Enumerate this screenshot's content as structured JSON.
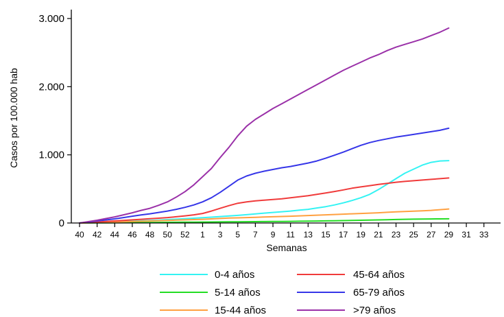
{
  "chart_data": {
    "type": "line",
    "title": "",
    "xlabel": "Semanas",
    "ylabel": "Casos por 100.000 hab",
    "x_ticks": [
      "40",
      "42",
      "44",
      "46",
      "48",
      "50",
      "52",
      "1",
      "3",
      "5",
      "7",
      "9",
      "11",
      "13",
      "15",
      "17",
      "19",
      "21",
      "23",
      "25",
      "27",
      "29",
      "31",
      "33"
    ],
    "y_ticks": [
      0,
      1000,
      2000,
      3000
    ],
    "y_tick_labels": [
      "0",
      "1.000",
      "2.000",
      "3.000"
    ],
    "ylim": [
      0,
      3000
    ],
    "grid": false,
    "legend_position": "bottom",
    "x": [
      "40",
      "41",
      "42",
      "43",
      "44",
      "45",
      "46",
      "47",
      "48",
      "49",
      "50",
      "51",
      "52",
      "53",
      "1",
      "2",
      "3",
      "4",
      "5",
      "6",
      "7",
      "8",
      "9",
      "10",
      "11",
      "12",
      "13",
      "14",
      "15",
      "16",
      "17",
      "18",
      "19",
      "20",
      "21",
      "22",
      "23",
      "24",
      "25",
      "26",
      "27",
      "28",
      "29"
    ],
    "series": [
      {
        "name": "0-4 años",
        "color": "#33f3f3",
        "values": [
          0,
          5,
          10,
          14,
          18,
          23,
          27,
          32,
          37,
          43,
          50,
          56,
          62,
          70,
          78,
          86,
          95,
          104,
          112,
          122,
          133,
          145,
          155,
          165,
          175,
          188,
          200,
          220,
          240,
          265,
          295,
          330,
          370,
          420,
          490,
          570,
          650,
          730,
          790,
          850,
          890,
          910,
          915
        ]
      },
      {
        "name": "5-14 años",
        "color": "#22dd22",
        "values": [
          0,
          1,
          2,
          3,
          4,
          5,
          6,
          7,
          8,
          9,
          10,
          11,
          12,
          13,
          14,
          15,
          16,
          17,
          18,
          19,
          20,
          21,
          22,
          23,
          24,
          26,
          27,
          29,
          31,
          33,
          35,
          37,
          40,
          42,
          45,
          48,
          51,
          54,
          56,
          58,
          59,
          60,
          61
        ]
      },
      {
        "name": "15-44 años",
        "color": "#ffa040",
        "values": [
          0,
          3,
          6,
          10,
          14,
          18,
          22,
          26,
          30,
          34,
          38,
          42,
          46,
          50,
          54,
          60,
          66,
          72,
          76,
          80,
          84,
          88,
          92,
          96,
          100,
          105,
          110,
          115,
          120,
          125,
          130,
          135,
          140,
          145,
          150,
          157,
          163,
          168,
          173,
          178,
          185,
          195,
          205
        ]
      },
      {
        "name": "45-64 años",
        "color": "#f03a3a",
        "values": [
          0,
          8,
          15,
          22,
          30,
          38,
          46,
          54,
          62,
          70,
          80,
          92,
          105,
          120,
          140,
          175,
          215,
          255,
          290,
          310,
          325,
          335,
          345,
          355,
          370,
          385,
          400,
          420,
          440,
          462,
          485,
          510,
          530,
          548,
          566,
          582,
          598,
          610,
          620,
          630,
          640,
          650,
          660
        ]
      },
      {
        "name": "65-79 años",
        "color": "#3535e8",
        "values": [
          0,
          15,
          30,
          45,
          60,
          80,
          100,
          118,
          135,
          155,
          175,
          200,
          230,
          265,
          310,
          370,
          450,
          540,
          630,
          690,
          730,
          760,
          785,
          810,
          830,
          855,
          880,
          910,
          950,
          995,
          1040,
          1090,
          1140,
          1180,
          1210,
          1235,
          1260,
          1280,
          1300,
          1320,
          1340,
          1360,
          1390
        ]
      },
      {
        "name": ">79 años",
        "color": "#9a30a8",
        "values": [
          0,
          20,
          40,
          65,
          90,
          120,
          150,
          185,
          215,
          260,
          310,
          380,
          460,
          560,
          680,
          800,
          960,
          1110,
          1280,
          1420,
          1520,
          1600,
          1680,
          1750,
          1820,
          1890,
          1960,
          2030,
          2100,
          2170,
          2240,
          2300,
          2360,
          2420,
          2470,
          2530,
          2580,
          2620,
          2660,
          2700,
          2750,
          2800,
          2860
        ]
      }
    ]
  }
}
